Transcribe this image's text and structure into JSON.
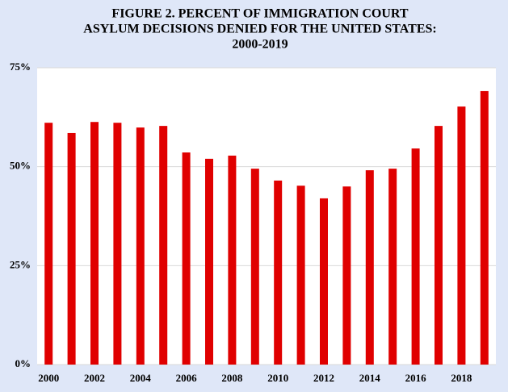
{
  "chart_data": {
    "type": "bar",
    "title": [
      "FIGURE 2.  PERCENT OF IMMIGRATION COURT",
      "ASYLUM DECISIONS DENIED FOR THE UNITED STATES:",
      "2000-2019"
    ],
    "categories": [
      "2000",
      null,
      "2002",
      null,
      "2004",
      null,
      "2006",
      null,
      "2008",
      null,
      "2010",
      null,
      "2012",
      null,
      "2014",
      null,
      "2016",
      null,
      "2018",
      null
    ],
    "values": [
      61.1,
      58.5,
      61.3,
      61.1,
      59.9,
      60.3,
      53.6,
      52.0,
      52.8,
      49.5,
      46.5,
      45.2,
      42.0,
      45.0,
      49.1,
      49.5,
      54.6,
      60.3,
      65.2,
      69.1
    ],
    "color": "#e00000",
    "ylim": [
      0,
      75
    ],
    "yticks": [
      {
        "value": 0,
        "label": "0%"
      },
      {
        "value": 25,
        "label": "25%"
      },
      {
        "value": 50,
        "label": "50%"
      },
      {
        "value": 75,
        "label": "75%"
      }
    ],
    "grid": true
  }
}
